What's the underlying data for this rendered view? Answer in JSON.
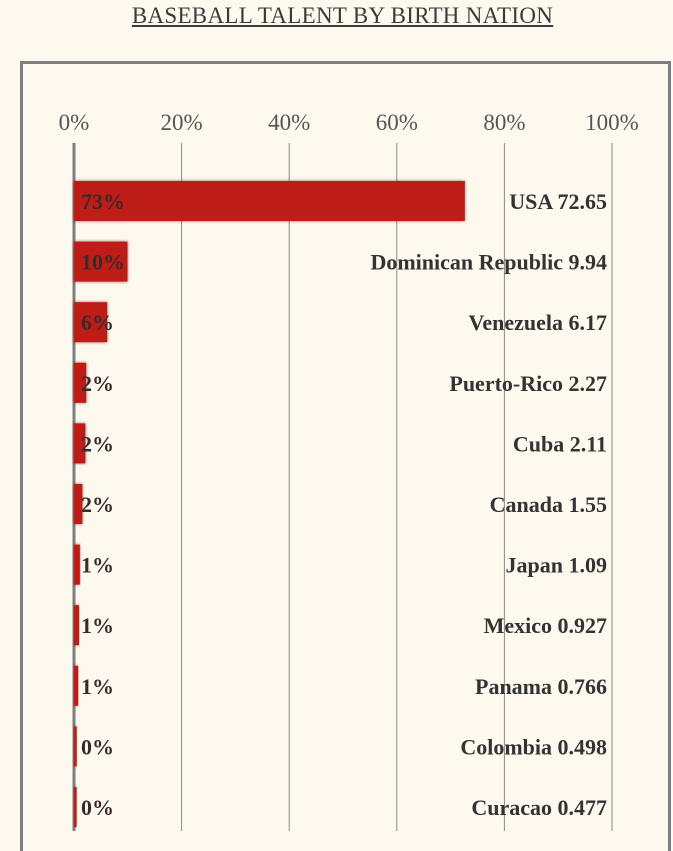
{
  "title": "BASEBALL TALENT BY BIRTH NATION",
  "colors": {
    "bar": "#be1a19",
    "grid": "#8a8a8a",
    "axis": "#7f7f7f"
  },
  "chart_data": {
    "type": "bar",
    "orientation": "horizontal",
    "xlim": [
      0,
      100
    ],
    "xticks": [
      "0%",
      "20%",
      "40%",
      "60%",
      "80%",
      "100%"
    ],
    "grid": true,
    "categories": [
      "USA",
      "Dominican Republic",
      "Venezuela",
      "Puerto-Rico",
      "Cuba",
      "Canada",
      "Japan",
      "Mexico",
      "Panama",
      "Colombia",
      "Curacao"
    ],
    "values": [
      72.65,
      9.94,
      6.17,
      2.27,
      2.11,
      1.55,
      1.09,
      0.927,
      0.766,
      0.498,
      0.477
    ],
    "value_labels": [
      "USA 72.65",
      "Dominican Republic 9.94",
      "Venezuela 6.17",
      "Puerto-Rico 2.27",
      "Cuba 2.11",
      "Canada 1.55",
      "Japan 1.09",
      "Mexico 0.927",
      "Panama 0.766",
      "Colombia 0.498",
      "Curacao 0.477"
    ],
    "percent_labels": [
      "73%",
      "10%",
      "6%",
      "2%",
      "2%",
      "2%",
      "1%",
      "1%",
      "1%",
      "0%",
      "0%"
    ]
  }
}
